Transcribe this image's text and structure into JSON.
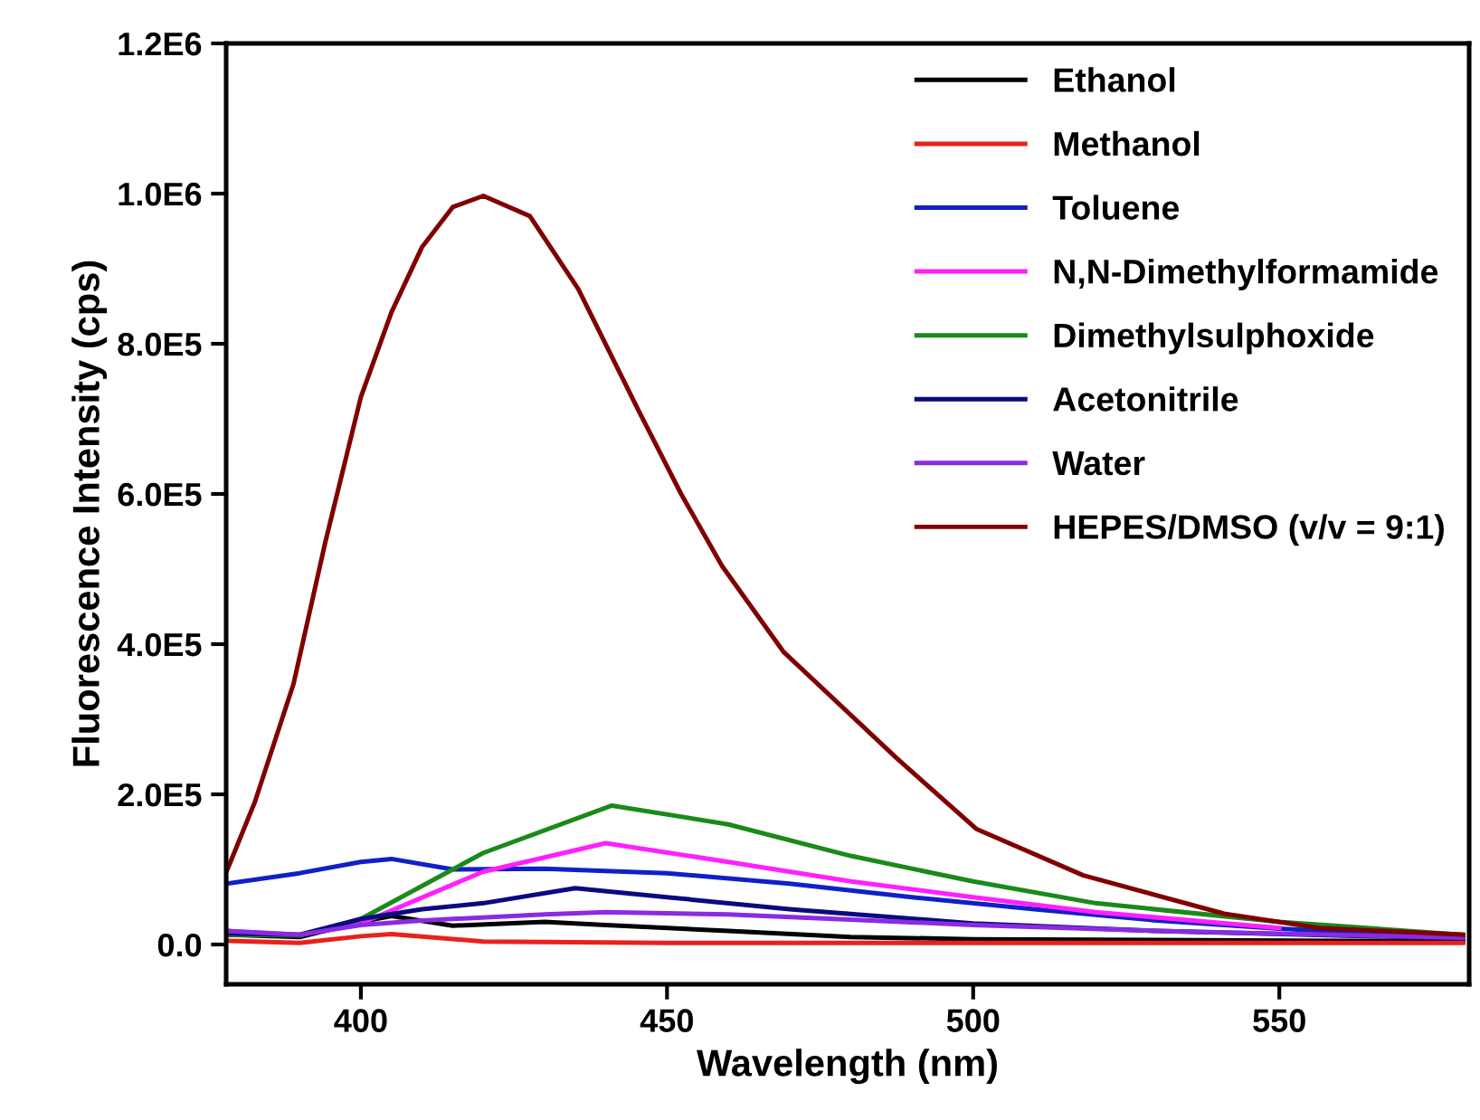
{
  "chart_data": {
    "type": "line",
    "xlabel": "Wavelength (nm)",
    "ylabel": "Fluorescence Intensity (cps)",
    "xlim": [
      378,
      581
    ],
    "xticks": [
      400,
      450,
      500,
      550
    ],
    "ylim": [
      -53000,
      1200000
    ],
    "yticks": [
      {
        "value": 0,
        "label": "0.0"
      },
      {
        "value": 200000,
        "label": "2.0E5"
      },
      {
        "value": 400000,
        "label": "4.0E5"
      },
      {
        "value": 600000,
        "label": "6.0E5"
      },
      {
        "value": 800000,
        "label": "8.0E5"
      },
      {
        "value": 1000000,
        "label": "1.0E6"
      },
      {
        "value": 1200000,
        "label": "1.2E6"
      }
    ],
    "grid": false,
    "legend": "top right",
    "line_style": "solid",
    "marker": "none",
    "series": [
      {
        "name": "Ethanol",
        "color": "#000000",
        "x": [
          378,
          390,
          400,
          405,
          415,
          430,
          440,
          460,
          480,
          500,
          580
        ],
        "values": [
          13000,
          10000,
          30000,
          38000,
          25000,
          30000,
          26000,
          18000,
          10000,
          7000,
          4000
        ]
      },
      {
        "name": "Methanol",
        "color": "#e8211d",
        "x": [
          378,
          390,
          400,
          405,
          420,
          450,
          580
        ],
        "values": [
          5000,
          2000,
          11000,
          14000,
          4000,
          2000,
          2000
        ]
      },
      {
        "name": "Toluene",
        "color": "#1020c8",
        "x": [
          378,
          390,
          400,
          405,
          415,
          430,
          450,
          470,
          490,
          510,
          530,
          550,
          580
        ],
        "values": [
          81000,
          95000,
          110000,
          114000,
          100000,
          101000,
          95000,
          81000,
          63000,
          47000,
          32000,
          21000,
          9000
        ]
      },
      {
        "name": "N,N-Dimethylformamide",
        "color": "#ff1fff",
        "x": [
          378,
          390,
          400,
          420,
          440,
          460,
          480,
          500,
          520,
          550
        ],
        "values": [
          18000,
          13000,
          28000,
          97000,
          135000,
          110000,
          84000,
          63000,
          43000,
          22000
        ]
      },
      {
        "name": "Dimethylsulphoxide",
        "color": "#1a8a1a",
        "x": [
          378,
          390,
          400,
          420,
          441,
          460,
          480,
          500,
          520,
          550,
          580
        ],
        "values": [
          13000,
          12000,
          34000,
          122000,
          185000,
          160000,
          118000,
          84000,
          55000,
          30000,
          13000
        ]
      },
      {
        "name": "Acetonitrile",
        "color": "#0a0a80",
        "x": [
          378,
          390,
          400,
          410,
          420,
          435,
          450,
          470,
          500,
          530,
          580
        ],
        "values": [
          15000,
          13000,
          34000,
          47000,
          55000,
          75000,
          63000,
          47000,
          28000,
          18000,
          8000
        ]
      },
      {
        "name": "Water",
        "color": "#8a2be2",
        "x": [
          378,
          390,
          400,
          410,
          430,
          440,
          460,
          480,
          500,
          530,
          580
        ],
        "values": [
          18000,
          13000,
          26000,
          32000,
          40000,
          43000,
          40000,
          33000,
          26000,
          18000,
          9000
        ]
      },
      {
        "name": "HEPES/DMSO (v/v = 9:1)",
        "color": "#800000",
        "x": [
          378,
          382.7,
          389,
          394.2,
          400,
          405,
          410,
          415,
          420,
          427.6,
          435.5,
          445.3,
          452.3,
          459,
          469,
          487.4,
          500.5,
          518,
          541,
          556.5,
          580
        ],
        "values": [
          96000,
          190000,
          347000,
          536000,
          729000,
          842000,
          929000,
          982000,
          997000,
          970000,
          873000,
          712000,
          600000,
          504000,
          390000,
          249000,
          154000,
          92000,
          41000,
          22000,
          13000
        ]
      }
    ]
  }
}
